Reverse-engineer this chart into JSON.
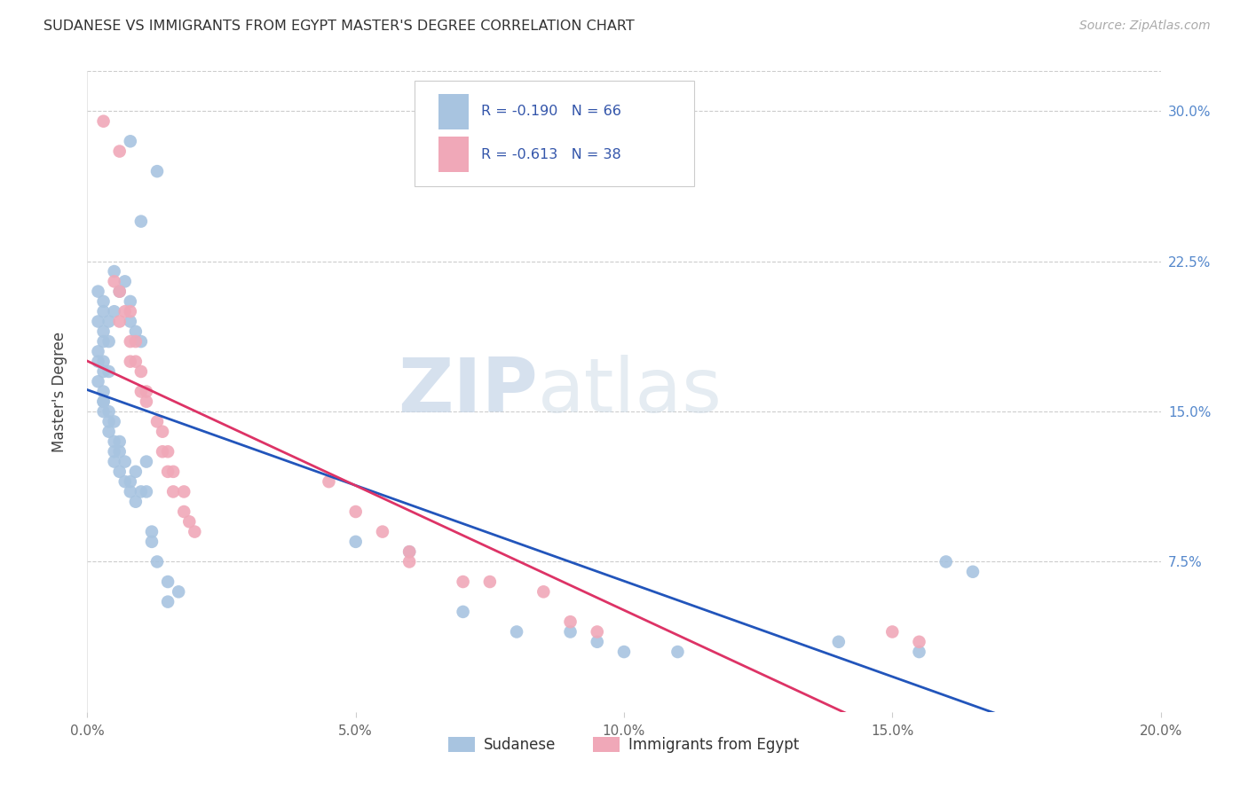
{
  "title": "SUDANESE VS IMMIGRANTS FROM EGYPT MASTER'S DEGREE CORRELATION CHART",
  "source": "Source: ZipAtlas.com",
  "ylabel": "Master's Degree",
  "watermark_zip": "ZIP",
  "watermark_atlas": "atlas",
  "xlim": [
    0.0,
    0.2
  ],
  "ylim": [
    0.0,
    0.32
  ],
  "xticks": [
    0.0,
    0.05,
    0.1,
    0.15,
    0.2
  ],
  "yticks": [
    0.0,
    0.075,
    0.15,
    0.225,
    0.3
  ],
  "xtick_labels": [
    "0.0%",
    "5.0%",
    "10.0%",
    "15.0%",
    "20.0%"
  ],
  "ytick_labels_right": [
    "",
    "7.5%",
    "15.0%",
    "22.5%",
    "30.0%"
  ],
  "blue_color": "#a8c4e0",
  "pink_color": "#f0a8b8",
  "blue_line_color": "#2255bb",
  "pink_line_color": "#dd3366",
  "text_color_legend": "#3355aa",
  "grid_color": "#cccccc",
  "legend_r_blue": "-0.190",
  "legend_n_blue": "66",
  "legend_r_pink": "-0.613",
  "legend_n_pink": "38",
  "blue_label": "Sudanese",
  "pink_label": "Immigrants from Egypt",
  "sudanese_x": [
    0.008,
    0.013,
    0.01,
    0.005,
    0.003,
    0.002,
    0.002,
    0.003,
    0.004,
    0.003,
    0.003,
    0.003,
    0.004,
    0.002,
    0.002,
    0.002,
    0.003,
    0.003,
    0.004,
    0.003,
    0.004,
    0.003,
    0.003,
    0.004,
    0.005,
    0.004,
    0.005,
    0.005,
    0.005,
    0.006,
    0.006,
    0.006,
    0.007,
    0.007,
    0.008,
    0.008,
    0.009,
    0.009,
    0.01,
    0.011,
    0.005,
    0.006,
    0.007,
    0.008,
    0.008,
    0.009,
    0.01,
    0.011,
    0.012,
    0.012,
    0.013,
    0.015,
    0.015,
    0.017,
    0.05,
    0.06,
    0.07,
    0.08,
    0.09,
    0.095,
    0.1,
    0.11,
    0.14,
    0.155,
    0.16,
    0.165
  ],
  "sudanese_y": [
    0.285,
    0.27,
    0.245,
    0.22,
    0.205,
    0.21,
    0.195,
    0.2,
    0.195,
    0.19,
    0.185,
    0.175,
    0.185,
    0.18,
    0.175,
    0.165,
    0.17,
    0.16,
    0.17,
    0.155,
    0.15,
    0.155,
    0.15,
    0.145,
    0.145,
    0.14,
    0.135,
    0.13,
    0.125,
    0.135,
    0.13,
    0.12,
    0.125,
    0.115,
    0.115,
    0.11,
    0.12,
    0.105,
    0.11,
    0.11,
    0.2,
    0.21,
    0.215,
    0.195,
    0.205,
    0.19,
    0.185,
    0.125,
    0.09,
    0.085,
    0.075,
    0.065,
    0.055,
    0.06,
    0.085,
    0.08,
    0.05,
    0.04,
    0.04,
    0.035,
    0.03,
    0.03,
    0.035,
    0.03,
    0.075,
    0.07
  ],
  "egypt_x": [
    0.003,
    0.006,
    0.005,
    0.006,
    0.007,
    0.006,
    0.008,
    0.008,
    0.008,
    0.009,
    0.009,
    0.01,
    0.01,
    0.011,
    0.011,
    0.013,
    0.014,
    0.014,
    0.015,
    0.015,
    0.016,
    0.016,
    0.018,
    0.018,
    0.019,
    0.02,
    0.045,
    0.05,
    0.055,
    0.06,
    0.06,
    0.07,
    0.075,
    0.085,
    0.09,
    0.095,
    0.15,
    0.155
  ],
  "egypt_y": [
    0.295,
    0.28,
    0.215,
    0.21,
    0.2,
    0.195,
    0.2,
    0.185,
    0.175,
    0.185,
    0.175,
    0.17,
    0.16,
    0.16,
    0.155,
    0.145,
    0.14,
    0.13,
    0.13,
    0.12,
    0.12,
    0.11,
    0.11,
    0.1,
    0.095,
    0.09,
    0.115,
    0.1,
    0.09,
    0.08,
    0.075,
    0.065,
    0.065,
    0.06,
    0.045,
    0.04,
    0.04,
    0.035
  ]
}
